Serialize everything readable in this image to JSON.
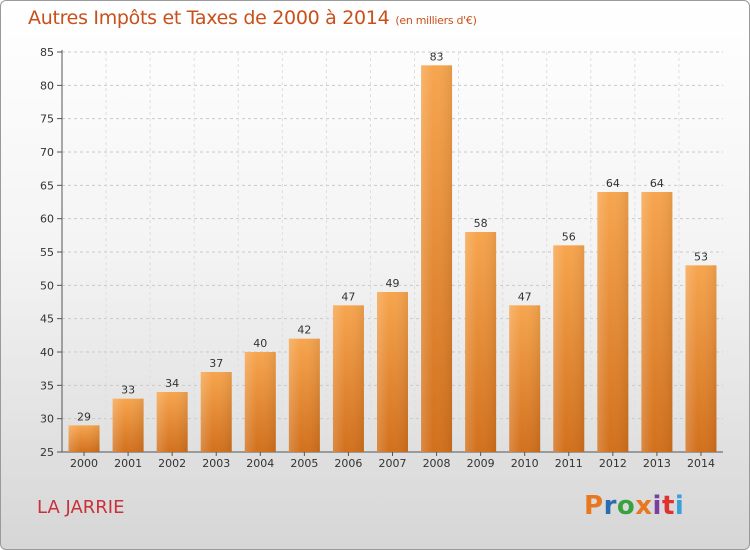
{
  "header": {
    "title": "Autres Impôts et Taxes de 2000 à 2014",
    "subtitle": "(en milliers d'€)"
  },
  "footer": {
    "commune": "LA JARRIE",
    "logo_text": "Proxiti",
    "logo_colors": [
      "#e87722",
      "#2b6cb0",
      "#3aa040",
      "#e87722",
      "#7b3fa0",
      "#e03030",
      "#3aa0d8"
    ]
  },
  "colors": {
    "bar_light": "#f7a54e",
    "bar_dark": "#d2701c",
    "title": "#c8501a",
    "commune": "#c8303a"
  },
  "chart_data": {
    "type": "bar",
    "title": "Autres Impôts et Taxes de 2000 à 2014",
    "subtitle": "(en milliers d'€)",
    "categories": [
      "2000",
      "2001",
      "2002",
      "2003",
      "2004",
      "2005",
      "2006",
      "2007",
      "2008",
      "2009",
      "2010",
      "2011",
      "2012",
      "2013",
      "2014"
    ],
    "values": [
      29,
      33,
      34,
      37,
      40,
      42,
      47,
      49,
      83,
      58,
      47,
      56,
      64,
      64,
      53
    ],
    "ylim": [
      25,
      85
    ],
    "yticks": [
      25,
      30,
      35,
      40,
      45,
      50,
      55,
      60,
      65,
      70,
      75,
      80,
      85
    ],
    "grid": true,
    "data_labels": true
  }
}
